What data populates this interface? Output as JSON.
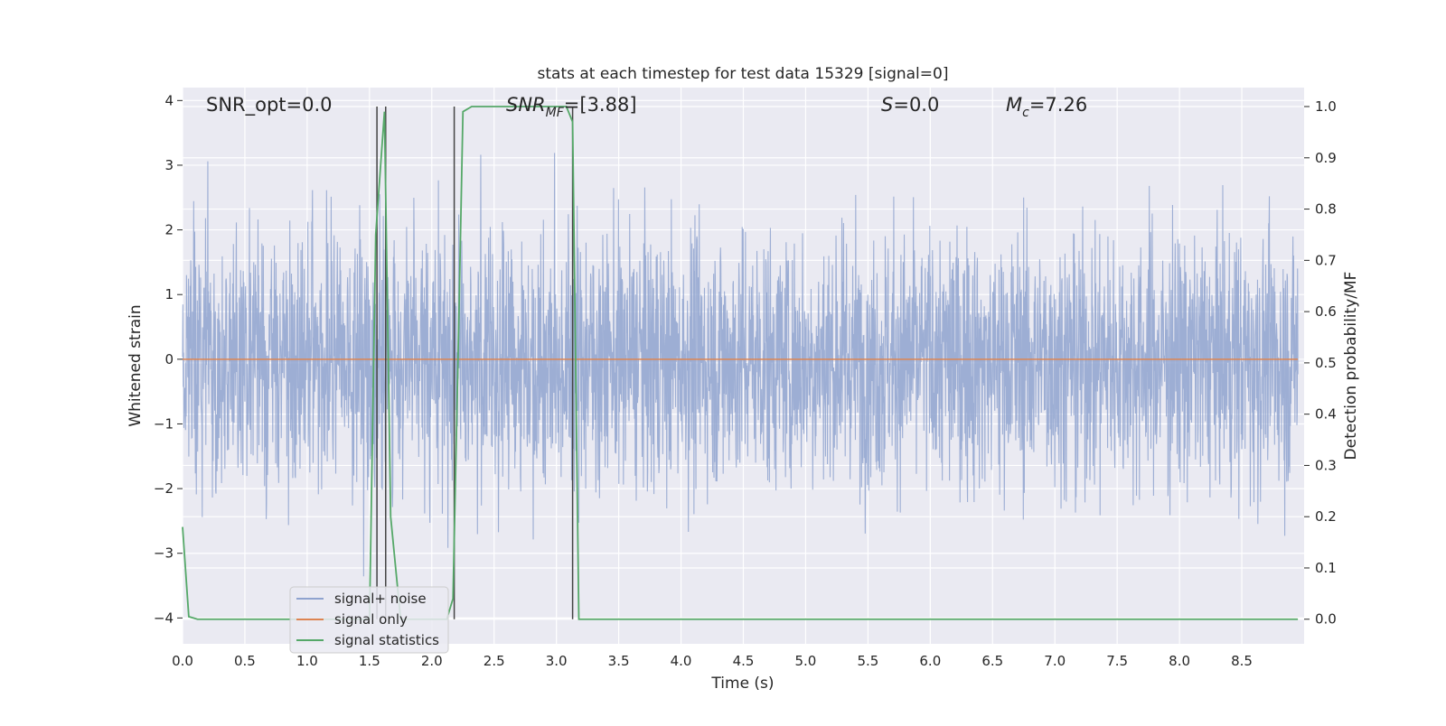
{
  "chart_data": {
    "type": "line",
    "title": "stats at each timestep for test data 15329 [signal=0]",
    "xlabel": "Time (s)",
    "ylabel_left": "Whitened strain",
    "ylabel_right": "Detection probability/MF",
    "xlim": [
      0.0,
      9.0
    ],
    "ylim_left": [
      -4.4,
      4.2
    ],
    "ylim_right": [
      -0.048,
      1.037
    ],
    "x_ticks": [
      "0.0",
      "0.5",
      "1.0",
      "1.5",
      "2.0",
      "2.5",
      "3.0",
      "3.5",
      "4.0",
      "4.5",
      "5.0",
      "5.5",
      "6.0",
      "6.5",
      "7.0",
      "7.5",
      "8.0",
      "8.5"
    ],
    "y_ticks_left": [
      "−4",
      "−3",
      "−2",
      "−1",
      "0",
      "1",
      "2",
      "3",
      "4"
    ],
    "y_ticks_right": [
      "0.0",
      "0.1",
      "0.2",
      "0.3",
      "0.4",
      "0.5",
      "0.6",
      "0.7",
      "0.8",
      "0.9",
      "1.0"
    ],
    "grid": true,
    "background": "#eaeaf2",
    "annotations": {
      "snr_opt": "SNR_opt=0.0",
      "snr_mf_main": "SNR",
      "snr_mf_sub": "MF",
      "snr_mf_value": "=[3.88]",
      "s_symbol": "S",
      "s_value": "=0.0",
      "mc_main": "M",
      "mc_sub": "c",
      "mc_value": "=7.26"
    },
    "legend": {
      "position": "lower-left",
      "entries": [
        {
          "label": "signal+ noise",
          "color": "#8fa3cf"
        },
        {
          "label": "signal only",
          "color": "#dd8452"
        },
        {
          "label": "signal statistics",
          "color": "#55a868"
        }
      ]
    },
    "series": [
      {
        "name": "signal+ noise",
        "axis": "left",
        "color": "#8fa3cf",
        "kind": "noise",
        "approx_amplitude_std": 1.0,
        "approx_range": [
          -4.0,
          3.8
        ]
      },
      {
        "name": "signal only",
        "axis": "left",
        "color": "#dd8452",
        "x": [
          0.0,
          8.95
        ],
        "y": [
          0.0,
          0.0
        ]
      },
      {
        "name": "signal statistics",
        "axis": "right",
        "color": "#55a868",
        "x": [
          0.0,
          0.05,
          0.12,
          1.5,
          1.55,
          1.62,
          1.67,
          1.75,
          2.12,
          2.17,
          2.22,
          2.25,
          2.32,
          3.0,
          3.08,
          3.13,
          3.18,
          3.22,
          8.95
        ],
        "y": [
          0.18,
          0.005,
          0.0,
          0.0,
          0.75,
          0.99,
          0.2,
          0.0,
          0.0,
          0.04,
          0.62,
          0.99,
          1.0,
          1.0,
          1.0,
          0.97,
          0.0,
          0.0,
          0.0
        ]
      }
    ],
    "vertical_markers": {
      "color": "#444444",
      "x": [
        1.56,
        1.63,
        2.18,
        3.13
      ],
      "y_range_right": [
        0.0,
        1.0
      ]
    }
  }
}
